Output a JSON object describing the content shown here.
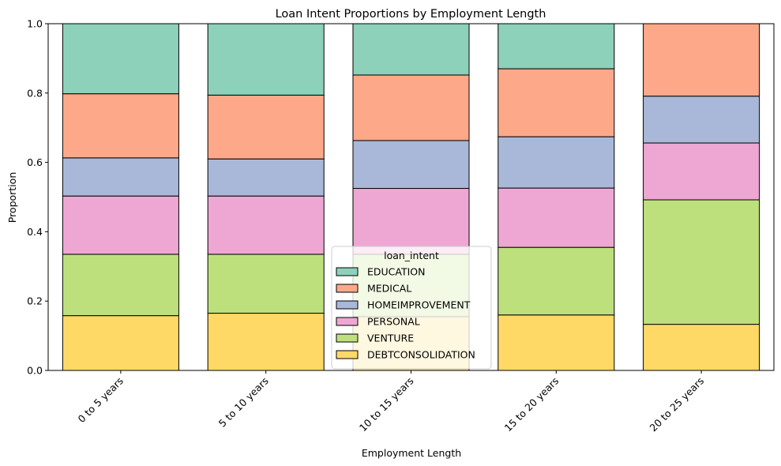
{
  "chart_data": {
    "type": "bar",
    "stacked": true,
    "title": "Loan Intent Proportions by Employment Length",
    "xlabel": "Employment Length",
    "ylabel": "Proportion",
    "ylim": [
      0,
      1
    ],
    "yticks": [
      "0.0",
      "0.2",
      "0.4",
      "0.6",
      "0.8",
      "1.0"
    ],
    "ytick_values": [
      0,
      0.2,
      0.4,
      0.6,
      0.8,
      1.0
    ],
    "categories": [
      "0 to 5 years",
      "5 to 10 years",
      "10 to 15 years",
      "15 to 20 years",
      "20 to 25 years"
    ],
    "legend": {
      "title": "loan_intent",
      "placement": "bottom-center"
    },
    "grid": false,
    "series": [
      {
        "name": "DEBTCONSOLIDATION",
        "color": "#ffd966",
        "values": [
          0.158,
          0.165,
          0.155,
          0.16,
          0.133
        ]
      },
      {
        "name": "VENTURE",
        "color": "#bde07d",
        "values": [
          0.177,
          0.17,
          0.18,
          0.195,
          0.359
        ]
      },
      {
        "name": "PERSONAL",
        "color": "#eea7d3",
        "values": [
          0.168,
          0.168,
          0.19,
          0.171,
          0.164
        ]
      },
      {
        "name": "HOMEIMPROVEMENT",
        "color": "#a9b8d9",
        "values": [
          0.11,
          0.107,
          0.138,
          0.148,
          0.135
        ]
      },
      {
        "name": "MEDICAL",
        "color": "#fda989",
        "values": [
          0.185,
          0.184,
          0.189,
          0.196,
          0.209
        ]
      },
      {
        "name": "EDUCATION",
        "color": "#8dd1bb",
        "values": [
          0.202,
          0.206,
          0.148,
          0.13,
          0.0
        ]
      }
    ],
    "legend_order": [
      "EDUCATION",
      "MEDICAL",
      "HOMEIMPROVEMENT",
      "PERSONAL",
      "VENTURE",
      "DEBTCONSOLIDATION"
    ]
  }
}
